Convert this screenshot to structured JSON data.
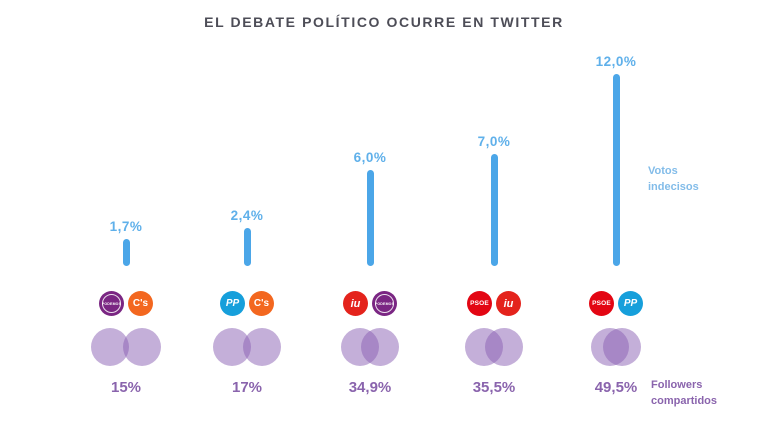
{
  "title": "EL DEBATE POLÍTICO OCURRE EN TWITTER",
  "side_labels": {
    "votos_indecisos": "Votos\nindecisos",
    "followers_compartidos": "Followers\ncompartidos"
  },
  "colors": {
    "bar_blue": "#4ba6e8",
    "bar_label_blue": "#5fb0ea",
    "title_gray": "#4d4d57",
    "purple_text": "#8a64ad",
    "venn_purple": "rgba(138,96,180,0.5)"
  },
  "parties": {
    "podemos": {
      "name": "Podemos",
      "label": "PODEMOS",
      "bg": "#7a2683",
      "fg": "#ffffff"
    },
    "ciudadanos": {
      "name": "Ciudadanos",
      "label": "C's",
      "bg": "#f3671f",
      "fg": "#ffffff"
    },
    "pp": {
      "name": "PP",
      "label": "PP",
      "bg": "#169fdb",
      "fg": "#ffffff"
    },
    "iu": {
      "name": "IU",
      "label": "iu",
      "bg": "#e4231c",
      "fg": "#ffffff"
    },
    "psoe": {
      "name": "PSOE",
      "label": "PSOE",
      "bg": "#e30613",
      "fg": "#ffffff"
    }
  },
  "groups": [
    {
      "parties": [
        "podemos",
        "ciudadanos"
      ],
      "bar_label": "1,7%",
      "bar_value": 1.7,
      "venn_label": "15%",
      "venn_value": 15
    },
    {
      "parties": [
        "pp",
        "ciudadanos"
      ],
      "bar_label": "2,4%",
      "bar_value": 2.4,
      "venn_label": "17%",
      "venn_value": 17
    },
    {
      "parties": [
        "iu",
        "podemos"
      ],
      "bar_label": "6,0%",
      "bar_value": 6.0,
      "venn_label": "34,9%",
      "venn_value": 34.9
    },
    {
      "parties": [
        "psoe",
        "iu"
      ],
      "bar_label": "7,0%",
      "bar_value": 7.0,
      "venn_label": "35,5%",
      "venn_value": 35.5
    },
    {
      "parties": [
        "psoe",
        "pp"
      ],
      "bar_label": "12,0%",
      "bar_value": 12.0,
      "venn_label": "49,5%",
      "venn_value": 49.5
    }
  ],
  "chart_data": {
    "type": "bar",
    "title": "EL DEBATE POLÍTICO OCURRE EN TWITTER",
    "categories": [
      "Podemos + Ciudadanos",
      "PP + Ciudadanos",
      "IU + Podemos",
      "PSOE + IU",
      "PSOE + PP"
    ],
    "series": [
      {
        "name": "Votos indecisos",
        "unit": "%",
        "values": [
          1.7,
          2.4,
          6.0,
          7.0,
          12.0
        ]
      },
      {
        "name": "Followers compartidos",
        "unit": "%",
        "values": [
          15,
          17,
          34.9,
          35.5,
          49.5
        ]
      }
    ],
    "value_labels": {
      "votos_indecisos": [
        "1,7%",
        "2,4%",
        "6,0%",
        "7,0%",
        "12,0%"
      ],
      "followers_compartidos": [
        "15%",
        "17%",
        "34,9%",
        "35,5%",
        "49,5%"
      ]
    },
    "grid": false,
    "legend_position": "right-annotations",
    "ylim": [
      0,
      12.5
    ]
  }
}
